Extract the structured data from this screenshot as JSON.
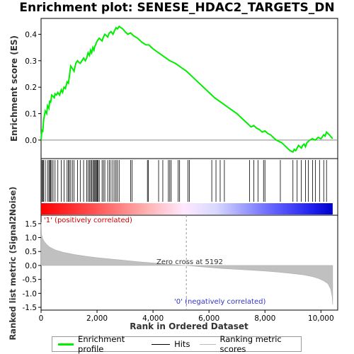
{
  "title": "Enrichment plot: SENESE_HDAC2_TARGETS_DN",
  "chart_data": [
    {
      "type": "line",
      "panel": "enrichment-profile",
      "ylabel": "Enrichment score (ES)",
      "xlim": [
        0,
        10600
      ],
      "ylim": [
        -0.07,
        0.46
      ],
      "yticks": [
        "0.0",
        "0.1",
        "0.2",
        "0.3",
        "0.4"
      ],
      "ytick_values": [
        0.0,
        0.1,
        0.2,
        0.3,
        0.4
      ],
      "grid": false,
      "color": "#00ee00",
      "series": [
        {
          "name": "Enrichment profile",
          "x": [
            0,
            30,
            60,
            90,
            150,
            200,
            230,
            280,
            310,
            340,
            380,
            430,
            470,
            500,
            550,
            600,
            660,
            720,
            770,
            820,
            870,
            930,
            980,
            1010,
            1060,
            1120,
            1180,
            1240,
            1300,
            1340,
            1400,
            1460,
            1520,
            1580,
            1630,
            1680,
            1730,
            1770,
            1810,
            1850,
            1890,
            1920,
            1950,
            1980,
            2010,
            2040,
            2080,
            2130,
            2180,
            2230,
            2280,
            2330,
            2380,
            2440,
            2500,
            2570,
            2630,
            2680,
            2730,
            2790,
            2850,
            2920,
            3000,
            3100,
            3200,
            3300,
            3450,
            3600,
            3750,
            3850,
            4000,
            4200,
            4400,
            4600,
            4800,
            5000,
            5200,
            5400,
            5600,
            5800,
            6000,
            6200,
            6400,
            6600,
            6800,
            7000,
            7200,
            7400,
            7500,
            7600,
            7700,
            7800,
            7900,
            8000,
            8100,
            8200,
            8300,
            8400,
            8500,
            8600,
            8700,
            8800,
            8900,
            9000,
            9050,
            9100,
            9150,
            9200,
            9250,
            9300,
            9350,
            9400,
            9450,
            9500,
            9550,
            9600,
            9700,
            9800,
            9900,
            10000,
            10100,
            10150,
            10200,
            10300,
            10420
          ],
          "y": [
            0.0,
            0.04,
            0.03,
            0.075,
            0.11,
            0.1,
            0.13,
            0.12,
            0.15,
            0.14,
            0.17,
            0.165,
            0.16,
            0.175,
            0.17,
            0.18,
            0.17,
            0.19,
            0.18,
            0.2,
            0.195,
            0.22,
            0.215,
            0.24,
            0.28,
            0.27,
            0.26,
            0.29,
            0.3,
            0.295,
            0.29,
            0.3,
            0.31,
            0.3,
            0.31,
            0.33,
            0.32,
            0.34,
            0.33,
            0.35,
            0.34,
            0.355,
            0.36,
            0.37,
            0.375,
            0.38,
            0.385,
            0.38,
            0.375,
            0.39,
            0.4,
            0.395,
            0.39,
            0.405,
            0.41,
            0.4,
            0.415,
            0.425,
            0.42,
            0.43,
            0.425,
            0.42,
            0.41,
            0.4,
            0.405,
            0.395,
            0.385,
            0.37,
            0.36,
            0.36,
            0.345,
            0.33,
            0.315,
            0.3,
            0.29,
            0.275,
            0.26,
            0.24,
            0.22,
            0.2,
            0.18,
            0.16,
            0.145,
            0.13,
            0.115,
            0.1,
            0.08,
            0.06,
            0.05,
            0.055,
            0.045,
            0.04,
            0.03,
            0.035,
            0.025,
            0.02,
            0.01,
            0.0,
            -0.005,
            -0.01,
            -0.02,
            -0.03,
            -0.04,
            -0.045,
            -0.035,
            -0.04,
            -0.03,
            -0.02,
            -0.025,
            -0.03,
            -0.02,
            -0.015,
            -0.025,
            -0.01,
            -0.005,
            0.0,
            0.005,
            0.0,
            0.01,
            0.005,
            0.02,
            0.015,
            0.03,
            0.02,
            0.005
          ]
        }
      ]
    },
    {
      "type": "scatter",
      "panel": "hits",
      "xlim": [
        0,
        10600
      ],
      "series": [
        {
          "name": "Hits",
          "x": [
            30,
            60,
            90,
            150,
            230,
            280,
            310,
            340,
            380,
            430,
            500,
            600,
            720,
            820,
            930,
            980,
            1010,
            1060,
            1120,
            1180,
            1300,
            1400,
            1520,
            1630,
            1680,
            1730,
            1770,
            1810,
            1850,
            1890,
            1920,
            1950,
            1980,
            2010,
            2040,
            2080,
            2180,
            2230,
            2280,
            2380,
            2440,
            2500,
            2570,
            2630,
            2680,
            2730,
            2790,
            3200,
            3250,
            3800,
            3830,
            4200,
            4350,
            4550,
            4600,
            4650,
            4900,
            4950,
            5250,
            5300,
            6100,
            6250,
            6400,
            6550,
            7450,
            7600,
            7750,
            7950,
            8000,
            8550,
            9000,
            9150,
            9300,
            9450,
            9550,
            9700,
            9800,
            9950,
            10100,
            10200
          ]
        }
      ]
    },
    {
      "type": "area",
      "panel": "ranked-list-metric",
      "ylabel": "Ranked list metric (Signal2Noise)",
      "xlabel": "Rank in Ordered Dataset",
      "xlim": [
        0,
        10600
      ],
      "ylim": [
        -1.6,
        1.8
      ],
      "xticks": [
        "0",
        "2,000",
        "4,000",
        "6,000",
        "8,000",
        "10,000"
      ],
      "xtick_values": [
        0,
        2000,
        4000,
        6000,
        8000,
        10000
      ],
      "yticks": [
        "1.5",
        "1.0",
        "0.5",
        "0.0",
        "-0.5",
        "-1.0",
        "-1.5"
      ],
      "ytick_values": [
        1.5,
        1.0,
        0.5,
        0.0,
        -0.5,
        -1.0,
        -1.5
      ],
      "zero_cross": 5192,
      "annotations": [
        "'1' (positively correlated)",
        "Zero cross at 5192",
        "'0' (negatively correlated)"
      ],
      "series": [
        {
          "name": "Ranking metric scores",
          "x": [
            0,
            20,
            60,
            120,
            200,
            300,
            500,
            800,
            1200,
            1600,
            2000,
            2500,
            3000,
            3500,
            4000,
            4500,
            5000,
            5192,
            5600,
            6000,
            6500,
            7000,
            7500,
            8000,
            8500,
            9000,
            9400,
            9700,
            9900,
            10100,
            10250,
            10350,
            10400,
            10420
          ],
          "y": [
            1.55,
            1.1,
            0.95,
            0.85,
            0.75,
            0.66,
            0.56,
            0.47,
            0.39,
            0.33,
            0.28,
            0.23,
            0.18,
            0.13,
            0.09,
            0.05,
            0.01,
            0.0,
            -0.04,
            -0.07,
            -0.11,
            -0.14,
            -0.17,
            -0.2,
            -0.24,
            -0.29,
            -0.34,
            -0.4,
            -0.46,
            -0.55,
            -0.65,
            -0.85,
            -1.1,
            -1.4
          ]
        }
      ]
    }
  ],
  "legend": {
    "items": [
      {
        "label": "Enrichment profile",
        "color": "#00ee00"
      },
      {
        "label": "Hits",
        "color": "#000000"
      },
      {
        "label": "Ranking metric scores",
        "color": "#bbbbbb"
      }
    ]
  }
}
